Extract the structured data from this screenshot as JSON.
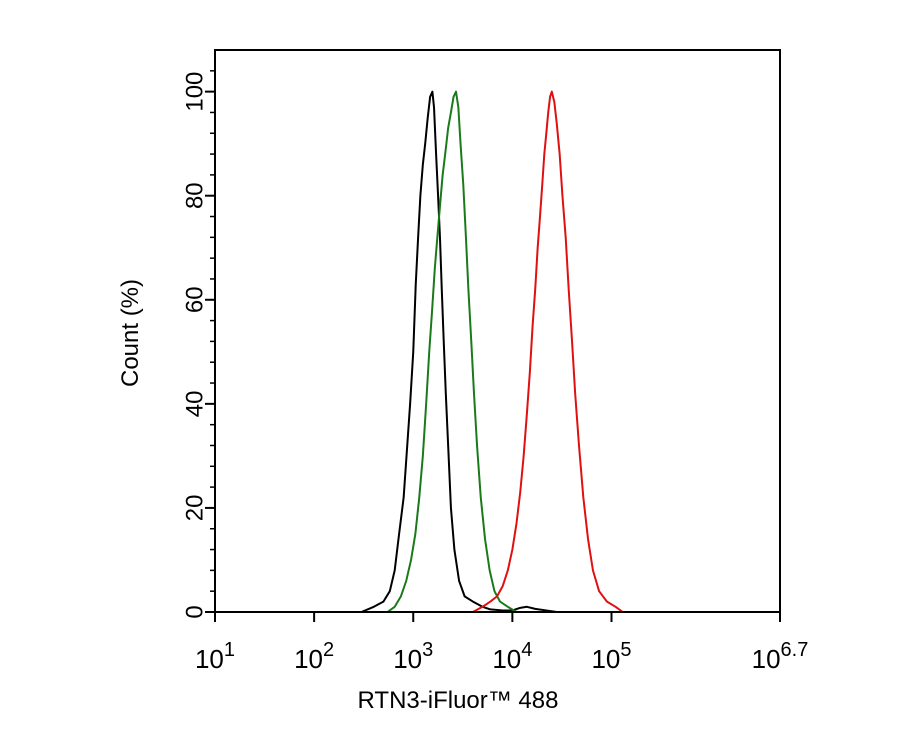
{
  "chart_data": {
    "type": "line",
    "title": "",
    "xlabel": "RTN3-iFluor™ 488",
    "ylabel": "Count  (%)",
    "xscale": "log",
    "xlim": [
      10,
      5011872
    ],
    "ylim": [
      0,
      108
    ],
    "grid": false,
    "legend": "none",
    "x_ticks": [
      {
        "value": 10,
        "base": "10",
        "exp": "1"
      },
      {
        "value": 100,
        "base": "10",
        "exp": "2"
      },
      {
        "value": 1000,
        "base": "10",
        "exp": "3"
      },
      {
        "value": 10000,
        "base": "10",
        "exp": "4"
      },
      {
        "value": 100000,
        "base": "10",
        "exp": "5"
      },
      {
        "value": 5011872,
        "base": "10",
        "exp": "6.7"
      }
    ],
    "y_ticks": [
      0,
      20,
      40,
      60,
      80,
      100
    ],
    "series": [
      {
        "color": "#000000",
        "points": [
          [
            300,
            0
          ],
          [
            400,
            1
          ],
          [
            500,
            2
          ],
          [
            580,
            4
          ],
          [
            650,
            8
          ],
          [
            720,
            15
          ],
          [
            800,
            22
          ],
          [
            870,
            32
          ],
          [
            930,
            40
          ],
          [
            1000,
            50
          ],
          [
            1060,
            63
          ],
          [
            1120,
            72
          ],
          [
            1180,
            80
          ],
          [
            1250,
            86
          ],
          [
            1320,
            90
          ],
          [
            1400,
            95
          ],
          [
            1480,
            99
          ],
          [
            1560,
            100
          ],
          [
            1620,
            97
          ],
          [
            1700,
            88
          ],
          [
            1780,
            80
          ],
          [
            1860,
            72
          ],
          [
            1940,
            62
          ],
          [
            2030,
            52
          ],
          [
            2130,
            42
          ],
          [
            2250,
            32
          ],
          [
            2400,
            20
          ],
          [
            2600,
            12
          ],
          [
            2900,
            6
          ],
          [
            3300,
            3
          ],
          [
            4000,
            2
          ],
          [
            5000,
            1
          ],
          [
            6000,
            0.5
          ],
          [
            8000,
            0.3
          ],
          [
            10000,
            0.3
          ],
          [
            12000,
            0.8
          ],
          [
            14000,
            1
          ],
          [
            17000,
            0.6
          ],
          [
            22000,
            0.3
          ],
          [
            28000,
            0
          ]
        ]
      },
      {
        "color": "#1a7a1a",
        "points": [
          [
            550,
            0
          ],
          [
            650,
            1
          ],
          [
            750,
            3
          ],
          [
            850,
            6
          ],
          [
            950,
            10
          ],
          [
            1050,
            15
          ],
          [
            1150,
            22
          ],
          [
            1250,
            30
          ],
          [
            1350,
            40
          ],
          [
            1450,
            50
          ],
          [
            1550,
            58
          ],
          [
            1650,
            66
          ],
          [
            1750,
            72
          ],
          [
            1860,
            78
          ],
          [
            1980,
            84
          ],
          [
            2100,
            88
          ],
          [
            2250,
            93
          ],
          [
            2400,
            96
          ],
          [
            2550,
            99
          ],
          [
            2700,
            100
          ],
          [
            2850,
            97
          ],
          [
            3000,
            90
          ],
          [
            3200,
            82
          ],
          [
            3400,
            72
          ],
          [
            3600,
            62
          ],
          [
            3850,
            52
          ],
          [
            4100,
            42
          ],
          [
            4400,
            32
          ],
          [
            4800,
            22
          ],
          [
            5300,
            14
          ],
          [
            5900,
            8
          ],
          [
            6600,
            4
          ],
          [
            7500,
            2
          ],
          [
            9000,
            1
          ],
          [
            11000,
            0
          ]
        ]
      },
      {
        "color": "#e01010",
        "points": [
          [
            4000,
            0
          ],
          [
            5000,
            1
          ],
          [
            6000,
            2
          ],
          [
            7000,
            3
          ],
          [
            8000,
            5
          ],
          [
            9000,
            8
          ],
          [
            10000,
            12
          ],
          [
            11000,
            17
          ],
          [
            12000,
            23
          ],
          [
            13000,
            30
          ],
          [
            14000,
            38
          ],
          [
            15000,
            46
          ],
          [
            16000,
            55
          ],
          [
            17000,
            62
          ],
          [
            18000,
            70
          ],
          [
            19000,
            76
          ],
          [
            20000,
            82
          ],
          [
            21000,
            88
          ],
          [
            22000,
            92
          ],
          [
            23000,
            96
          ],
          [
            24000,
            99
          ],
          [
            25000,
            100
          ],
          [
            26500,
            98
          ],
          [
            28000,
            94
          ],
          [
            30000,
            88
          ],
          [
            32000,
            80
          ],
          [
            34500,
            72
          ],
          [
            37000,
            62
          ],
          [
            40000,
            52
          ],
          [
            43000,
            42
          ],
          [
            47000,
            32
          ],
          [
            52000,
            22
          ],
          [
            58000,
            14
          ],
          [
            65000,
            8
          ],
          [
            75000,
            4
          ],
          [
            90000,
            2
          ],
          [
            110000,
            1
          ],
          [
            130000,
            0
          ]
        ]
      }
    ]
  }
}
